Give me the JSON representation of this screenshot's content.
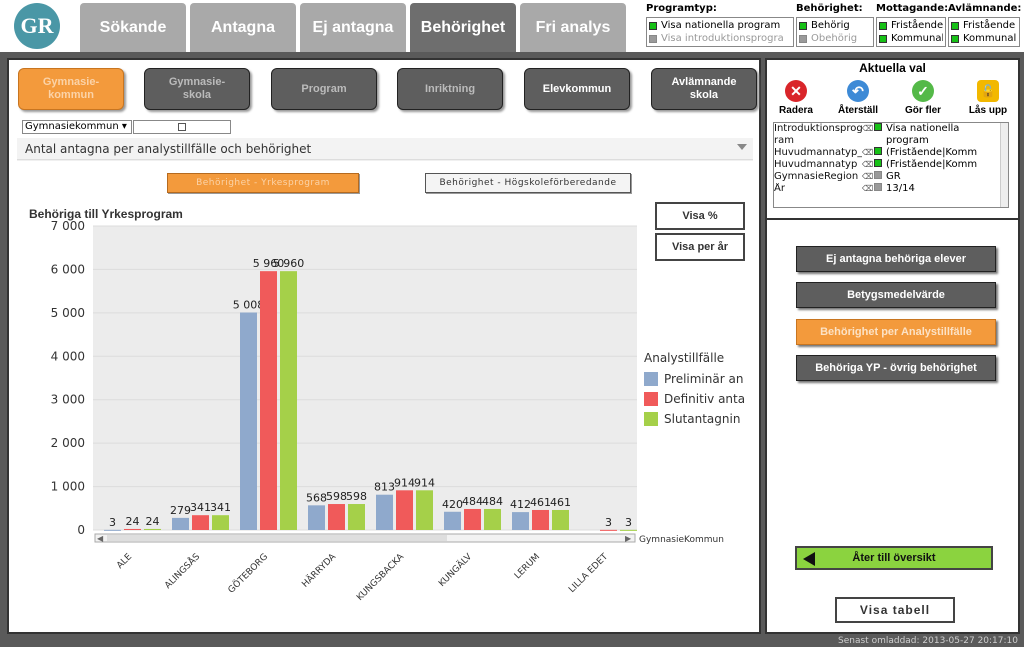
{
  "logo": "GR",
  "tabs": [
    {
      "label": "Sökande"
    },
    {
      "label": "Antagna"
    },
    {
      "label": "Ej antagna"
    },
    {
      "label": "Behörighet"
    },
    {
      "label": "Fri analys"
    }
  ],
  "filters": {
    "programtyp": {
      "header": "Programtyp:",
      "options": [
        "Visa nationella program",
        "Visa introduktionsprogra"
      ]
    },
    "behorighet": {
      "header": "Behörighet:",
      "options": [
        "Behörig",
        "Obehörig"
      ]
    },
    "mottagande": {
      "header": "Mottagande:",
      "options": [
        "Fristående",
        "Kommunal"
      ]
    },
    "avlamnande": {
      "header": "Avlämnande:",
      "options": [
        "Fristående",
        "Kommunal"
      ]
    }
  },
  "nav_buttons": [
    {
      "label": "Gymnasie-\nkommun"
    },
    {
      "label": "Gymnasie-\nskola"
    },
    {
      "label": "Program"
    },
    {
      "label": "Inriktning"
    },
    {
      "label": "Elevkommun"
    },
    {
      "label": "Avlämnande\nskola"
    }
  ],
  "combo": {
    "value": "Gymnasiekommun"
  },
  "chart_header": "Antal antagna per analystillfälle och behörighet",
  "toggles": {
    "yrkes": "Behörighet - Yrkesprogram",
    "hogskole": "Behörighet - Högskoleförberedande"
  },
  "chart_buttons": {
    "percent": "Visa %",
    "per_year": "Visa per år"
  },
  "chart_data": {
    "type": "bar",
    "title": "Behöriga till Yrkesprogram",
    "xlabel": "GymnasieKommun",
    "ylabel": "",
    "ylim": [
      0,
      7000
    ],
    "yticks": [
      "0",
      "1 000",
      "2 000",
      "3 000",
      "4 000",
      "5 000",
      "6 000",
      "7 000"
    ],
    "categories": [
      "ALE",
      "ALINGSÅS",
      "GÖTEBORG",
      "HÄRRYDA",
      "KUNGSBACKA",
      "KUNGÄLV",
      "LERUM",
      "LILLA EDET"
    ],
    "legend_title": "Analystillfälle",
    "legend_position": "right",
    "series": [
      {
        "name": "Preliminär an",
        "color": "#8fa9cc",
        "values": [
          3,
          279,
          5008,
          568,
          813,
          420,
          412,
          null
        ],
        "labels": [
          "3",
          "279",
          "5 008",
          "568",
          "813",
          "420",
          "412",
          ""
        ]
      },
      {
        "name": "Definitiv anta",
        "color": "#f05a5a",
        "values": [
          24,
          341,
          5960,
          598,
          914,
          484,
          461,
          3
        ],
        "labels": [
          "24",
          "341",
          "5 960",
          "598",
          "914",
          "484",
          "461",
          "3"
        ]
      },
      {
        "name": "Slutantagnin",
        "color": "#a5d049",
        "values": [
          24,
          341,
          5960,
          598,
          914,
          484,
          461,
          3
        ],
        "labels": [
          "24",
          "341",
          "5 960",
          "598",
          "914",
          "484",
          "461",
          "3"
        ]
      }
    ]
  },
  "selections": {
    "title": "Aktuella val",
    "actions": [
      {
        "label": "Radera",
        "color": "#d9252a"
      },
      {
        "label": "Återställ",
        "color": "#3d8ad6"
      },
      {
        "label": "Gör fler",
        "color": "#54b948"
      },
      {
        "label": "Lås upp",
        "color": "#f2b800"
      }
    ],
    "rows": [
      {
        "field": "Introduktionsprog",
        "value": "Visa nationella"
      },
      {
        "field": "ram",
        "value": "program"
      },
      {
        "field": "Huvudmannatyp_",
        "value": "(Fristående|Komm"
      },
      {
        "field": "Huvudmannatyp",
        "value": "(Fristående|Komm"
      },
      {
        "field": "GymnasieRegion",
        "value": "GR"
      },
      {
        "field": "År",
        "value": "13/14"
      }
    ]
  },
  "side_actions": [
    {
      "label": "Ej antagna behöriga elever"
    },
    {
      "label": "Betygsmedelvärde"
    },
    {
      "label": "Behörighet per Analystillfälle"
    },
    {
      "label": "Behöriga YP - övrig behörighet"
    }
  ],
  "back_button": "Åter till översikt",
  "table_button": "Visa tabell",
  "footer": "Senast omladdad: 2013-05-27 20:17:10"
}
